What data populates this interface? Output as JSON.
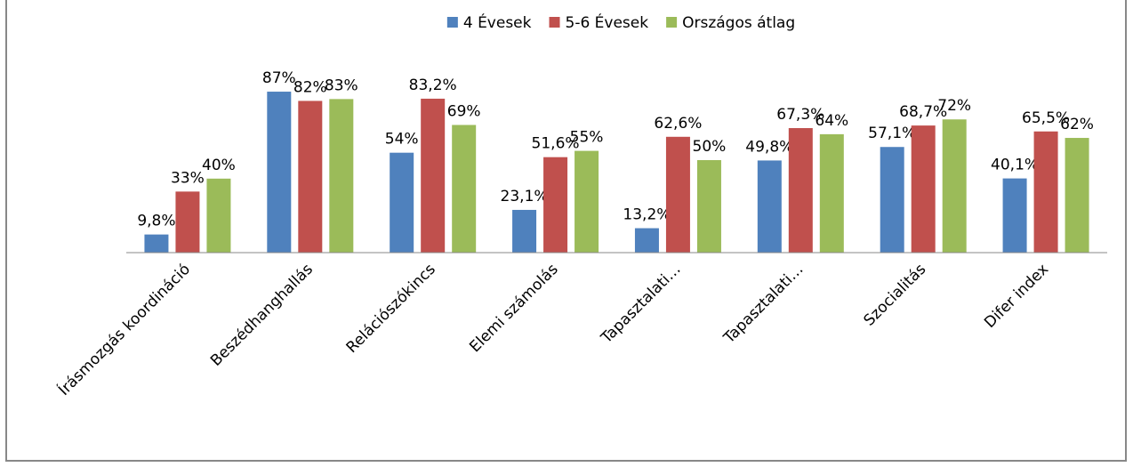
{
  "chart_data": {
    "type": "bar",
    "categories": [
      "Írásmozgás koordináció",
      "Beszédhanghallás",
      "Relációszókincs",
      "Elemi számolás",
      "Tapasztalati…",
      "Tapasztalati…",
      "Szocialitás",
      "Difer index"
    ],
    "series": [
      {
        "name": "4 Évesek",
        "color": "#4f81bd",
        "values": [
          9.8,
          87,
          54,
          23.1,
          13.2,
          49.8,
          57.1,
          40.1
        ],
        "value_labels": [
          "9,8%",
          "87%",
          "54%",
          "23,1%",
          "13,2%",
          "49,8%",
          "57,1%",
          "40,1%"
        ]
      },
      {
        "name": "5-6 Évesek",
        "color": "#c0504d",
        "values": [
          33,
          82,
          83.2,
          51.6,
          62.6,
          67.3,
          68.7,
          65.5
        ],
        "value_labels": [
          "33%",
          "82%",
          "83,2%",
          "51,6%",
          "62,6%",
          "67,3%",
          "68,7%",
          "65,5%"
        ]
      },
      {
        "name": "Országos átlag",
        "color": "#9bbb59",
        "values": [
          40,
          83,
          69,
          55,
          50,
          64,
          72,
          62
        ],
        "value_labels": [
          "40%",
          "83%",
          "69%",
          "55%",
          "50%",
          "64%",
          "72%",
          "62%"
        ]
      }
    ],
    "ylim": [
      0,
      100
    ],
    "legend": "top"
  }
}
